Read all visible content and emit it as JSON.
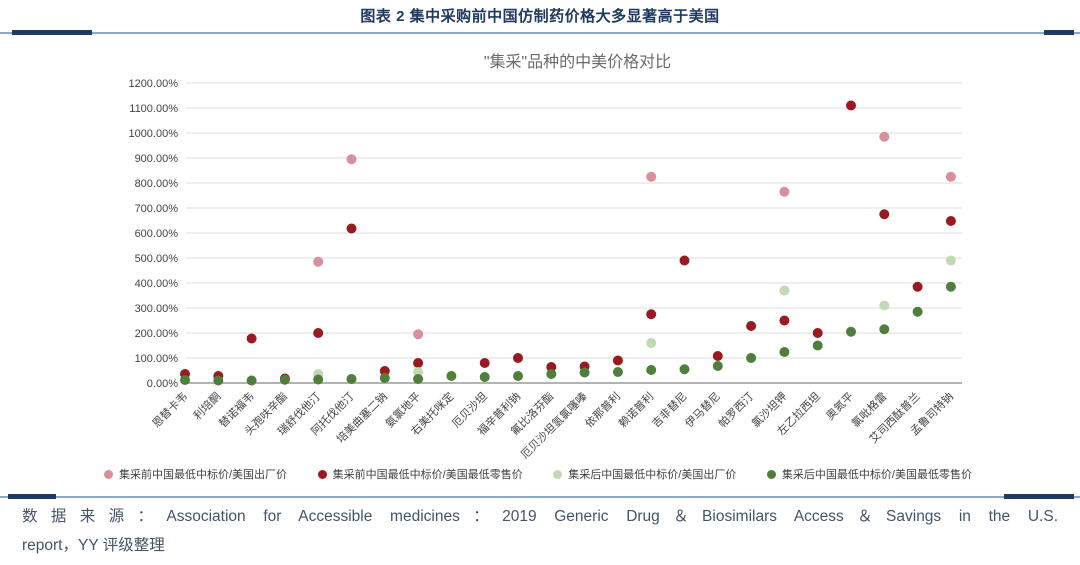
{
  "header": {
    "title": "图表 2 集中采购前中国仿制药价格大多显著高于美国"
  },
  "source": {
    "line1": "数据来源：Association for Accessible medicines：2019 Generic Drug＆Biosimilars Access＆Savings in the U.S.",
    "line2": "report，YY 评级整理"
  },
  "chart_data": {
    "type": "scatter",
    "title": "\"集采\"品种的中美价格对比",
    "xlabel": "",
    "ylabel": "",
    "ylim": [
      0,
      1200
    ],
    "ytick_step": 100,
    "ytick_suffix": "%",
    "grid": true,
    "legend_position": "bottom",
    "categories": [
      "恩替卡韦",
      "利培酮",
      "替诺福韦",
      "头孢呋辛酯",
      "瑞舒伐他汀",
      "阿托伐他汀",
      "培美曲塞二钠",
      "氨氯地平",
      "右美托咪定",
      "厄贝沙坦",
      "福辛普利钠",
      "氟比洛芬酯",
      "厄贝沙坦氢氯噻嗪",
      "依那普利",
      "赖诺普利",
      "吉非替尼",
      "伊马替尼",
      "帕罗西汀",
      "氯沙坦钾",
      "左乙拉西坦",
      "奥氮平",
      "氯吡格雷",
      "艾司西酞普兰",
      "孟鲁司特钠"
    ],
    "series": [
      {
        "name": "集采前中国最低中标价/美国出厂价",
        "color": "#d9909b",
        "values": [
          null,
          null,
          null,
          null,
          485,
          895,
          null,
          195,
          null,
          null,
          null,
          null,
          null,
          null,
          825,
          null,
          null,
          null,
          765,
          null,
          null,
          985,
          null,
          825
        ]
      },
      {
        "name": "集采前中国最低中标价/美国最低零售价",
        "color": "#9a1a22",
        "values": [
          36,
          28,
          178,
          18,
          200,
          618,
          48,
          80,
          null,
          80,
          100,
          64,
          66,
          90,
          275,
          490,
          108,
          228,
          250,
          200,
          1110,
          675,
          385,
          648
        ]
      },
      {
        "name": "集采后中国最低中标价/美国出厂价",
        "color": "#c3d8b6",
        "values": [
          null,
          null,
          null,
          null,
          36,
          null,
          null,
          44,
          null,
          null,
          null,
          null,
          null,
          null,
          160,
          null,
          null,
          null,
          370,
          null,
          null,
          310,
          null,
          490
        ]
      },
      {
        "name": "集采后中国最低中标价/美国最低零售价",
        "color": "#4f7e3d",
        "values": [
          12,
          10,
          10,
          13,
          14,
          16,
          20,
          16,
          28,
          24,
          28,
          36,
          42,
          44,
          52,
          55,
          68,
          100,
          124,
          150,
          205,
          215,
          285,
          385
        ]
      }
    ]
  }
}
